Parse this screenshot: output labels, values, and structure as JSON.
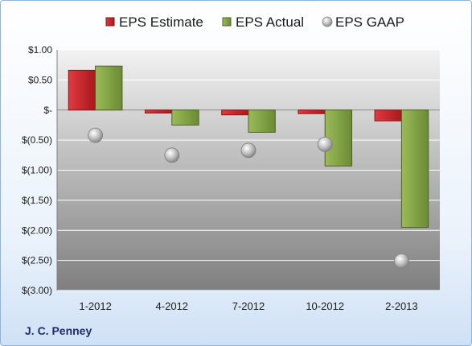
{
  "company": "J. C. Penney",
  "chart_data": {
    "type": "bar",
    "categories": [
      "1-2012",
      "4-2012",
      "7-2012",
      "10-2012",
      "2-2013"
    ],
    "series": [
      {
        "name": "EPS Estimate",
        "kind": "bar",
        "color": "#c0282d",
        "values": [
          0.66,
          -0.05,
          -0.08,
          -0.06,
          -0.18
        ]
      },
      {
        "name": "EPS Actual",
        "kind": "bar",
        "color": "#77933c",
        "values": [
          0.73,
          -0.25,
          -0.37,
          -0.93,
          -1.95
        ]
      },
      {
        "name": "EPS GAAP",
        "kind": "marker",
        "color": "#a6a6a6",
        "values": [
          -0.42,
          -0.75,
          -0.67,
          -0.57,
          -2.51
        ]
      }
    ],
    "yticks": [
      1.0,
      0.5,
      0,
      -0.5,
      -1.0,
      -1.5,
      -2.0,
      -2.5,
      -3.0
    ],
    "ytick_labels": [
      "$1.00",
      "$0.50",
      "$-",
      "$(0.50)",
      "$(1.00)",
      "$(1.50)",
      "$(2.00)",
      "$(2.50)",
      "$(3.00)"
    ],
    "ylim": [
      -3.0,
      1.0
    ],
    "legend_position": "top",
    "grid": true
  }
}
